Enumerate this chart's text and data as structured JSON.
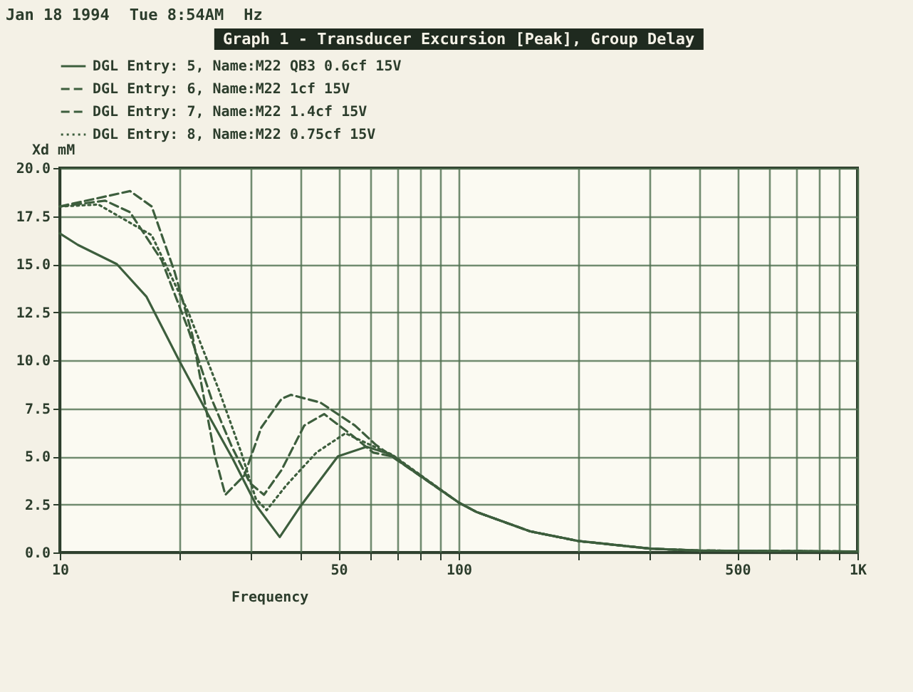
{
  "chart_data": {
    "type": "line",
    "title": "Graph 1 - Transducer Excursion [Peak], Group Delay",
    "xlabel": "Frequency",
    "ylabel": "Xd mM",
    "annotations": [
      "Jan 18 1994",
      "Tue 8:54AM",
      "Hz"
    ],
    "log": "x",
    "grid": true,
    "legend": "top",
    "xlim": [
      10,
      1000
    ],
    "ylim": [
      0,
      20
    ],
    "xticks": [
      10,
      {
        "value": 20,
        "label": null
      },
      {
        "value": 30,
        "label": null
      },
      {
        "value": 40,
        "label": null
      },
      50,
      {
        "value": 60,
        "label": null
      },
      {
        "value": 70,
        "label": null
      },
      {
        "value": 80,
        "label": null
      },
      {
        "value": 90,
        "label": null
      },
      100,
      {
        "value": 200,
        "label": null
      },
      {
        "value": 300,
        "label": null
      },
      {
        "value": 400,
        "label": null
      },
      500,
      {
        "value": 600,
        "label": null
      },
      {
        "value": 700,
        "label": null
      },
      {
        "value": 800,
        "label": null
      },
      {
        "value": 900,
        "label": null
      },
      {
        "value": 1000,
        "label": "1K"
      }
    ],
    "yticks": [
      {
        "value": 0,
        "label": "0.0"
      },
      {
        "value": 2.5,
        "label": "2.5"
      },
      {
        "value": 5,
        "label": "5.0"
      },
      {
        "value": 7.5,
        "label": "7.5"
      },
      {
        "value": 10,
        "label": "10.0"
      },
      {
        "value": 12.5,
        "label": "12.5"
      },
      {
        "value": 15,
        "label": "15.0"
      },
      {
        "value": 17.5,
        "label": "17.5"
      },
      {
        "value": 20,
        "label": "20.0"
      }
    ],
    "series": [
      {
        "name": "DGL Entry: 5, Name:M22 QB3 0.6cf 15V",
        "color": "#3d5e3d",
        "line_style": "solid",
        "x": [
          10,
          11.1,
          13.9,
          16.5,
          19.9,
          23.5,
          27.1,
          31.2,
          35.6,
          40.1,
          49.8,
          58.8,
          67.6,
          100,
          111,
          151,
          199,
          302,
          400,
          1000
        ],
        "values": [
          16.6,
          16.0,
          15.0,
          13.3,
          10.0,
          7.2,
          4.9,
          2.4,
          0.8,
          2.4,
          5.0,
          5.5,
          5.1,
          2.6,
          2.1,
          1.1,
          0.6,
          0.2,
          0.1,
          0.05
        ]
      },
      {
        "name": "DGL Entry: 6, Name:M22 1cf 15V",
        "color": "#3d5e3d",
        "line_style": "dashed",
        "x": [
          10,
          13,
          15,
          18,
          21,
          24,
          27,
          30,
          32.5,
          36,
          41,
          46,
          54,
          61,
          68,
          100,
          111,
          151,
          199,
          302,
          400,
          1000
        ],
        "values": [
          18.0,
          18.3,
          17.7,
          15.2,
          11.6,
          8.0,
          5.5,
          3.6,
          3.0,
          4.3,
          6.6,
          7.2,
          6.1,
          5.2,
          5.0,
          2.6,
          2.1,
          1.1,
          0.6,
          0.2,
          0.1,
          0.05
        ]
      },
      {
        "name": "DGL Entry: 7, Name:M22 1.4cf 15V",
        "color": "#3d5e3d",
        "line_style": "dashed",
        "x": [
          10,
          15,
          17,
          19.4,
          21.5,
          23,
          24.5,
          26,
          29,
          32,
          36,
          38,
          45,
          55,
          62,
          68,
          100,
          111,
          151,
          199,
          302,
          400,
          1000
        ],
        "values": [
          18.0,
          18.8,
          18.0,
          14.6,
          11.3,
          8.0,
          5.0,
          3.0,
          4.0,
          6.5,
          8.0,
          8.2,
          7.8,
          6.6,
          5.6,
          5.0,
          2.6,
          2.1,
          1.1,
          0.6,
          0.2,
          0.1,
          0.05
        ]
      },
      {
        "name": "DGL Entry: 8, Name:M22 0.75cf 15V",
        "color": "#3d5e3d",
        "line_style": "dotted",
        "x": [
          10,
          12.5,
          17,
          21,
          25,
          28.5,
          31,
          33,
          37,
          44,
          52,
          60,
          68,
          100,
          111,
          151,
          199,
          302,
          400,
          1000
        ],
        "values": [
          18.0,
          18.1,
          16.5,
          12.5,
          8.5,
          5.2,
          2.8,
          2.2,
          3.5,
          5.2,
          6.2,
          5.6,
          5.1,
          2.6,
          2.1,
          1.1,
          0.6,
          0.2,
          0.1,
          0.05
        ]
      }
    ]
  }
}
